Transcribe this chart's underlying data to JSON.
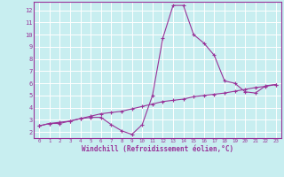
{
  "xlabel": "Windchill (Refroidissement éolien,°C)",
  "bg_color": "#c8eef0",
  "line_color": "#993399",
  "grid_color": "#ffffff",
  "spine_color": "#7a4a7a",
  "xlim": [
    -0.5,
    23.5
  ],
  "ylim": [
    1.5,
    12.7
  ],
  "yticks": [
    2,
    3,
    4,
    5,
    6,
    7,
    8,
    9,
    10,
    11,
    12
  ],
  "xticks": [
    0,
    1,
    2,
    3,
    4,
    5,
    6,
    7,
    8,
    9,
    10,
    11,
    12,
    13,
    14,
    15,
    16,
    17,
    18,
    19,
    20,
    21,
    22,
    23
  ],
  "series1_x": [
    0,
    1,
    2,
    3,
    4,
    5,
    6,
    7,
    8,
    9,
    10,
    11,
    12,
    13,
    14,
    15,
    16,
    17,
    18,
    19,
    20,
    21,
    22,
    23
  ],
  "series1_y": [
    2.5,
    2.7,
    2.7,
    2.9,
    3.1,
    3.2,
    3.2,
    2.6,
    2.1,
    1.8,
    2.6,
    5.0,
    9.7,
    12.4,
    12.4,
    10.0,
    9.3,
    8.3,
    6.2,
    6.0,
    5.3,
    5.2,
    5.8,
    5.9
  ],
  "series2_x": [
    0,
    1,
    2,
    3,
    4,
    5,
    6,
    7,
    8,
    9,
    10,
    11,
    12,
    13,
    14,
    15,
    16,
    17,
    18,
    19,
    20,
    21,
    22,
    23
  ],
  "series2_y": [
    2.5,
    2.7,
    2.8,
    2.9,
    3.1,
    3.3,
    3.5,
    3.6,
    3.7,
    3.9,
    4.1,
    4.3,
    4.5,
    4.6,
    4.7,
    4.9,
    5.0,
    5.1,
    5.2,
    5.35,
    5.5,
    5.65,
    5.75,
    5.9
  ]
}
